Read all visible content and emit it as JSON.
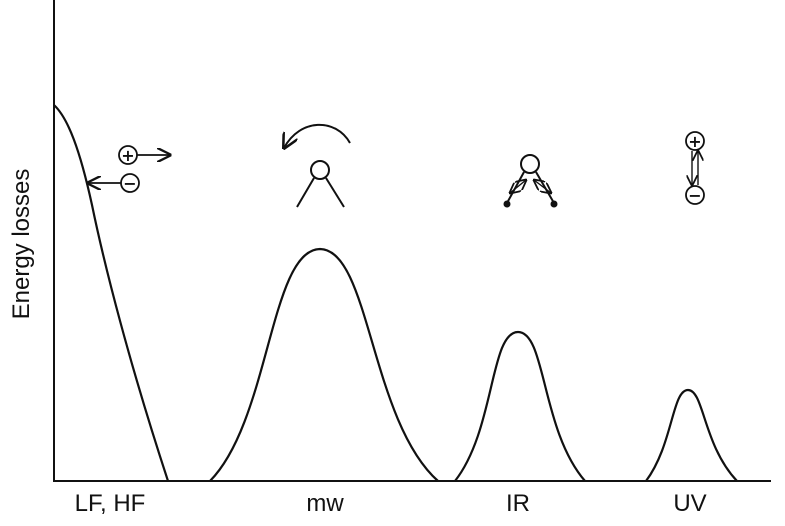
{
  "axis": {
    "y_label": "Energy losses"
  },
  "bands": [
    {
      "id": "lf-hf",
      "label": "LF, HF",
      "mechanism": "ionic/charge displacement"
    },
    {
      "id": "mw",
      "label": "mw",
      "mechanism": "dipole rotation"
    },
    {
      "id": "ir",
      "label": "IR",
      "mechanism": "atomic vibration"
    },
    {
      "id": "uv",
      "label": "UV",
      "mechanism": "electronic polarization"
    }
  ],
  "symbols": {
    "plus": "+",
    "minus": "−"
  },
  "colors": {
    "stroke": "#111111",
    "background": "#ffffff"
  }
}
